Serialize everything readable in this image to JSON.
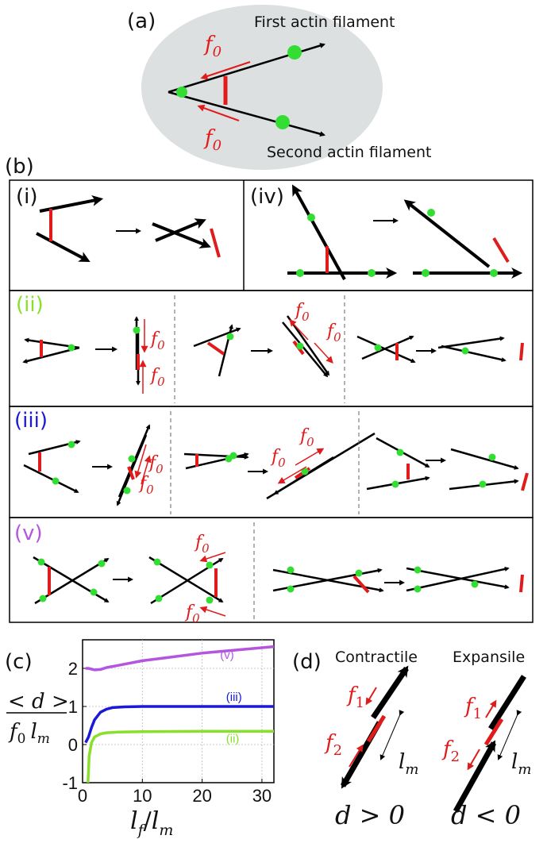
{
  "panel_a": {
    "label": "(a)",
    "filament1": "First actin filament",
    "filament2": "Second actin filament",
    "force": "f",
    "force_sub": "0"
  },
  "panel_b": {
    "label": "(b)",
    "rows": {
      "i": "(i)",
      "iv": "(iv)",
      "ii": "(ii)",
      "iii": "(iii)",
      "v": "(v)"
    },
    "force": "f",
    "force_sub": "0"
  },
  "panel_c": {
    "label": "(c)",
    "ylabel_top": "< d >",
    "ylabel_bottom_f": "f",
    "ylabel_bottom_sub": "0",
    "ylabel_bottom_l": "l",
    "ylabel_bottom_lsub": "m",
    "xlabel_l1": "l",
    "xlabel_sub1": "f",
    "xlabel_slash": "/",
    "xlabel_l2": "l",
    "xlabel_sub2": "m"
  },
  "panel_d": {
    "label": "(d)",
    "contractile": "Contractile",
    "expansile": "Expansile",
    "f1": "f",
    "f1_sub": "1",
    "f2": "f",
    "f2_sub": "2",
    "lm": "l",
    "lm_sub": "m",
    "cond_contractile": "d > 0",
    "cond_expansile": "d < 0"
  },
  "colors": {
    "force": "#e01b1b",
    "node": "#33dd33",
    "ii": "#88e02a",
    "iii": "#1a1ad6",
    "v": "#b455e0"
  },
  "chart_data": {
    "type": "line",
    "x_ticks": [
      "0",
      "10",
      "20",
      "30"
    ],
    "y_ticks": [
      "-1",
      "0",
      "1",
      "2"
    ],
    "xlim": [
      0,
      32
    ],
    "ylim": [
      -1,
      2.75
    ],
    "grid": true,
    "series": [
      {
        "name": "(v)",
        "color": "#b455e0",
        "x": [
          0.5,
          1,
          2,
          3,
          4,
          6,
          10,
          15,
          20,
          25,
          32
        ],
        "y": [
          2.0,
          2.0,
          1.96,
          1.97,
          2.02,
          2.08,
          2.2,
          2.3,
          2.4,
          2.47,
          2.57
        ]
      },
      {
        "name": "(iii)",
        "color": "#1a1ad6",
        "x": [
          0.5,
          1,
          1.5,
          2,
          3,
          4,
          5,
          7,
          10,
          15,
          20,
          25,
          32
        ],
        "y": [
          0.05,
          0.2,
          0.45,
          0.65,
          0.85,
          0.93,
          0.97,
          0.99,
          1.0,
          1.0,
          1.0,
          1.0,
          1.0
        ]
      },
      {
        "name": "(ii)",
        "color": "#88e02a",
        "x": [
          0.9,
          1.1,
          1.5,
          2,
          3,
          4,
          6,
          10,
          20,
          32
        ],
        "y": [
          -1.0,
          -0.3,
          0.05,
          0.2,
          0.28,
          0.31,
          0.33,
          0.34,
          0.35,
          0.35
        ]
      }
    ]
  }
}
